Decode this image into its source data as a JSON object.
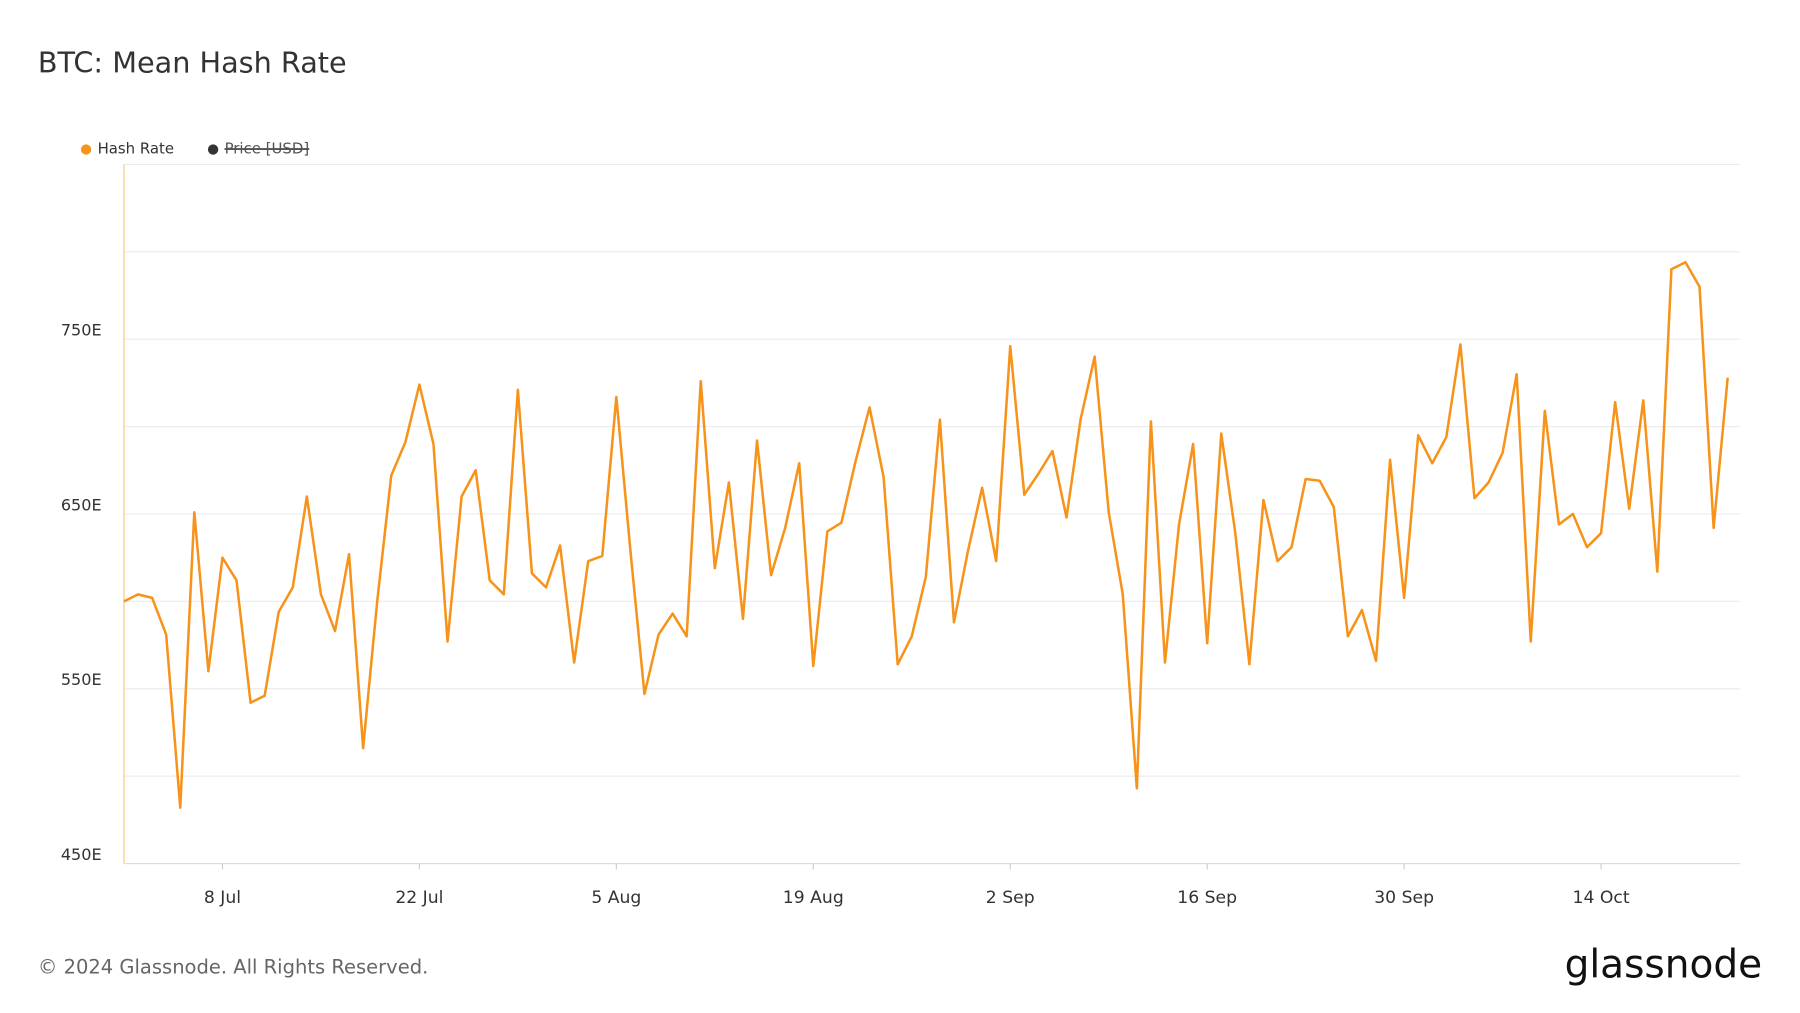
{
  "chart_data": {
    "type": "line",
    "title": "BTC: Mean Hash Rate",
    "footer": "© 2024 Glassnode. All Rights Reserved.",
    "brand": "glassnode",
    "x": [
      "1 Jul",
      "2 Jul",
      "3 Jul",
      "4 Jul",
      "5 Jul",
      "6 Jul",
      "7 Jul",
      "8 Jul",
      "9 Jul",
      "10 Jul",
      "11 Jul",
      "12 Jul",
      "13 Jul",
      "14 Jul",
      "15 Jul",
      "16 Jul",
      "17 Jul",
      "18 Jul",
      "19 Jul",
      "20 Jul",
      "21 Jul",
      "22 Jul",
      "23 Jul",
      "24 Jul",
      "25 Jul",
      "26 Jul",
      "27 Jul",
      "28 Jul",
      "29 Jul",
      "30 Jul",
      "31 Jul",
      "1 Aug",
      "2 Aug",
      "3 Aug",
      "4 Aug",
      "5 Aug",
      "6 Aug",
      "7 Aug",
      "8 Aug",
      "9 Aug",
      "10 Aug",
      "11 Aug",
      "12 Aug",
      "13 Aug",
      "14 Aug",
      "15 Aug",
      "16 Aug",
      "17 Aug",
      "18 Aug",
      "19 Aug",
      "20 Aug",
      "21 Aug",
      "22 Aug",
      "23 Aug",
      "24 Aug",
      "25 Aug",
      "26 Aug",
      "27 Aug",
      "28 Aug",
      "29 Aug",
      "30 Aug",
      "31 Aug",
      "1 Sep",
      "2 Sep",
      "3 Sep",
      "4 Sep",
      "5 Sep",
      "6 Sep",
      "7 Sep",
      "8 Sep",
      "9 Sep",
      "10 Sep",
      "11 Sep",
      "12 Sep",
      "13 Sep",
      "14 Sep",
      "15 Sep",
      "16 Sep",
      "17 Sep",
      "18 Sep",
      "19 Sep",
      "20 Sep",
      "21 Sep",
      "22 Sep",
      "23 Sep",
      "24 Sep",
      "25 Sep",
      "26 Sep",
      "27 Sep",
      "28 Sep",
      "29 Sep",
      "30 Sep",
      "1 Oct",
      "2 Oct",
      "3 Oct",
      "4 Oct",
      "5 Oct",
      "6 Oct",
      "7 Oct",
      "8 Oct",
      "9 Oct",
      "10 Oct",
      "11 Oct",
      "12 Oct",
      "13 Oct",
      "14 Oct",
      "15 Oct",
      "16 Oct",
      "17 Oct",
      "18 Oct",
      "19 Oct",
      "20 Oct",
      "21 Oct",
      "22 Oct",
      "23 Oct"
    ],
    "series": [
      {
        "name": "Hash Rate",
        "color": "#f7931a",
        "values": [
          600,
          604,
          602,
          581,
          482,
          651,
          560,
          625,
          612,
          542,
          546,
          594,
          608,
          660,
          604,
          583,
          627,
          516,
          600,
          672,
          691,
          724,
          690,
          577,
          660,
          675,
          612,
          604,
          721,
          616,
          608,
          632,
          565,
          623,
          626,
          717,
          629,
          547,
          581,
          593,
          580,
          726,
          619,
          668,
          590,
          692,
          615,
          642,
          679,
          563,
          640,
          645,
          680,
          711,
          671,
          564,
          580,
          614,
          704,
          588,
          629,
          665,
          623,
          746,
          661,
          673,
          686,
          648,
          704,
          740,
          651,
          604,
          493,
          703,
          565,
          644,
          690,
          576,
          696,
          639,
          564,
          658,
          623,
          631,
          670,
          669,
          654,
          580,
          595,
          566,
          681,
          602,
          695,
          679,
          694,
          747,
          659,
          668,
          685,
          730,
          577,
          709,
          644,
          650,
          631,
          639,
          714,
          653,
          715,
          617,
          790,
          794,
          780,
          642,
          728
        ]
      }
    ],
    "hidden_series": [
      {
        "name": "Price [USD]",
        "color": "#333333"
      }
    ],
    "ylim": [
      450,
      850
    ],
    "yticks": [
      {
        "value": 450,
        "label": "450E"
      },
      {
        "value": 550,
        "label": "550E"
      },
      {
        "value": 650,
        "label": "650E"
      },
      {
        "value": 750,
        "label": "750E"
      }
    ],
    "minor_yticks": [
      500,
      600,
      700,
      800,
      850
    ],
    "xticks": [
      "8 Jul",
      "22 Jul",
      "5 Aug",
      "19 Aug",
      "2 Sep",
      "16 Sep",
      "30 Sep",
      "14 Oct"
    ],
    "grid": true,
    "legend": "top-left"
  }
}
